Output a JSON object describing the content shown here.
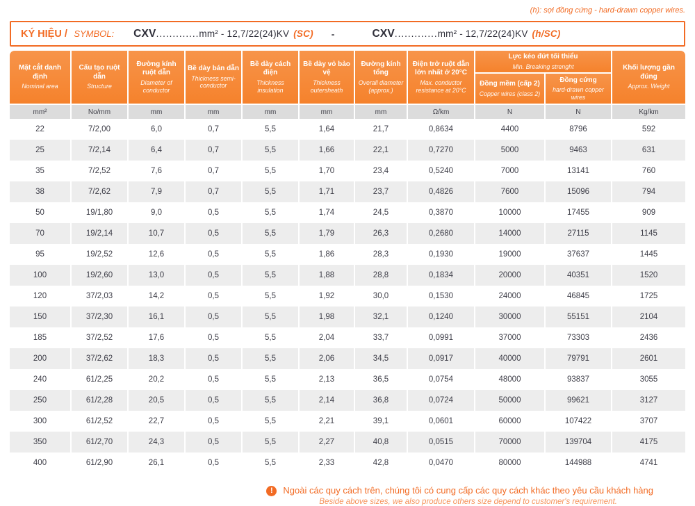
{
  "colors": {
    "accent_orange": "#F26B24",
    "header_orange": "#F5822C",
    "units_gray": "#DCDCDC",
    "row_alt_gray": "#EDEDED",
    "text_dark": "#3E3E48"
  },
  "top_note": "(h): sợi đồng cứng - hard-drawn copper wires.",
  "symbol_box": {
    "label_vn": "KÝ HIỆU /",
    "label_en": "SYMBOL:",
    "separator": "-",
    "codes": [
      {
        "prefix": "CXV",
        "dots": ".............",
        "spec": "mm² - 12,7/22(24)KV",
        "tag": "(SC)"
      },
      {
        "prefix": "CXV",
        "dots": ".............",
        "spec": "mm² - 12,7/22(24)KV",
        "tag": "(h/SC)"
      }
    ]
  },
  "table": {
    "group_header": {
      "vn": "Lực kéo đứt tối thiểu",
      "en": "Min. Breaking strenght"
    },
    "columns": [
      {
        "vn": "Mặt cắt danh định",
        "en": "Nominal area",
        "unit": "mm²"
      },
      {
        "vn": "Cấu tạo ruột dẫn",
        "en": "Structure",
        "unit": "No/mm"
      },
      {
        "vn": "Đường kính ruột dẫn",
        "en": "Diameter of conductor",
        "unit": "mm"
      },
      {
        "vn": "Bề dày bán dẫn",
        "en": "Thickness semi-conductor",
        "unit": "mm"
      },
      {
        "vn": "Bề dày cách điện",
        "en": "Thickness insulation",
        "unit": "mm"
      },
      {
        "vn": "Bề dày vỏ bảo vệ",
        "en": "Thickness outersheath",
        "unit": "mm"
      },
      {
        "vn": "Đường kính tổng",
        "en": "Overall diameter (approx.)",
        "unit": "mm"
      },
      {
        "vn": "Điện trở ruột dẫn lớn nhất ở 20°C",
        "en": "Max. conductor resistance at 20°C",
        "unit": "Ω/km"
      },
      {
        "vn": "Đồng mềm (cấp 2)",
        "en": "Copper wires (class 2)",
        "unit": "N"
      },
      {
        "vn": "Đồng cứng",
        "en": "hard-drawn copper wires",
        "unit": "N"
      },
      {
        "vn": "Khối lượng gần đúng",
        "en": "Approx. Weight",
        "unit": "Kg/km"
      }
    ],
    "rows": [
      [
        "22",
        "7/2,00",
        "6,0",
        "0,7",
        "5,5",
        "1,64",
        "21,7",
        "0,8634",
        "4400",
        "8796",
        "592"
      ],
      [
        "25",
        "7/2,14",
        "6,4",
        "0,7",
        "5,5",
        "1,66",
        "22,1",
        "0,7270",
        "5000",
        "9463",
        "631"
      ],
      [
        "35",
        "7/2,52",
        "7,6",
        "0,7",
        "5,5",
        "1,70",
        "23,4",
        "0,5240",
        "7000",
        "13141",
        "760"
      ],
      [
        "38",
        "7/2,62",
        "7,9",
        "0,7",
        "5,5",
        "1,71",
        "23,7",
        "0,4826",
        "7600",
        "15096",
        "794"
      ],
      [
        "50",
        "19/1,80",
        "9,0",
        "0,5",
        "5,5",
        "1,74",
        "24,5",
        "0,3870",
        "10000",
        "17455",
        "909"
      ],
      [
        "70",
        "19/2,14",
        "10,7",
        "0,5",
        "5,5",
        "1,79",
        "26,3",
        "0,2680",
        "14000",
        "27115",
        "1145"
      ],
      [
        "95",
        "19/2,52",
        "12,6",
        "0,5",
        "5,5",
        "1,86",
        "28,3",
        "0,1930",
        "19000",
        "37637",
        "1445"
      ],
      [
        "100",
        "19/2,60",
        "13,0",
        "0,5",
        "5,5",
        "1,88",
        "28,8",
        "0,1834",
        "20000",
        "40351",
        "1520"
      ],
      [
        "120",
        "37/2,03",
        "14,2",
        "0,5",
        "5,5",
        "1,92",
        "30,0",
        "0,1530",
        "24000",
        "46845",
        "1725"
      ],
      [
        "150",
        "37/2,30",
        "16,1",
        "0,5",
        "5,5",
        "1,98",
        "32,1",
        "0,1240",
        "30000",
        "55151",
        "2104"
      ],
      [
        "185",
        "37/2,52",
        "17,6",
        "0,5",
        "5,5",
        "2,04",
        "33,7",
        "0,0991",
        "37000",
        "73303",
        "2436"
      ],
      [
        "200",
        "37/2,62",
        "18,3",
        "0,5",
        "5,5",
        "2,06",
        "34,5",
        "0,0917",
        "40000",
        "79791",
        "2601"
      ],
      [
        "240",
        "61/2,25",
        "20,2",
        "0,5",
        "5,5",
        "2,13",
        "36,5",
        "0,0754",
        "48000",
        "93837",
        "3055"
      ],
      [
        "250",
        "61/2,28",
        "20,5",
        "0,5",
        "5,5",
        "2,14",
        "36,8",
        "0,0724",
        "50000",
        "99621",
        "3127"
      ],
      [
        "300",
        "61/2,52",
        "22,7",
        "0,5",
        "5,5",
        "2,21",
        "39,1",
        "0,0601",
        "60000",
        "107422",
        "3707"
      ],
      [
        "350",
        "61/2,70",
        "24,3",
        "0,5",
        "5,5",
        "2,27",
        "40,8",
        "0,0515",
        "70000",
        "139704",
        "4175"
      ],
      [
        "400",
        "61/2,90",
        "26,1",
        "0,5",
        "5,5",
        "2,33",
        "42,8",
        "0,0470",
        "80000",
        "144988",
        "4741"
      ]
    ]
  },
  "footer_note": {
    "icon_glyph": "!",
    "line1": "Ngoài các quy cách trên, chúng tôi có cung cấp các quy cách khác theo yêu cầu khách hàng",
    "line2": "Beside above sizes, we also produce others size depend to customer's requirement."
  }
}
